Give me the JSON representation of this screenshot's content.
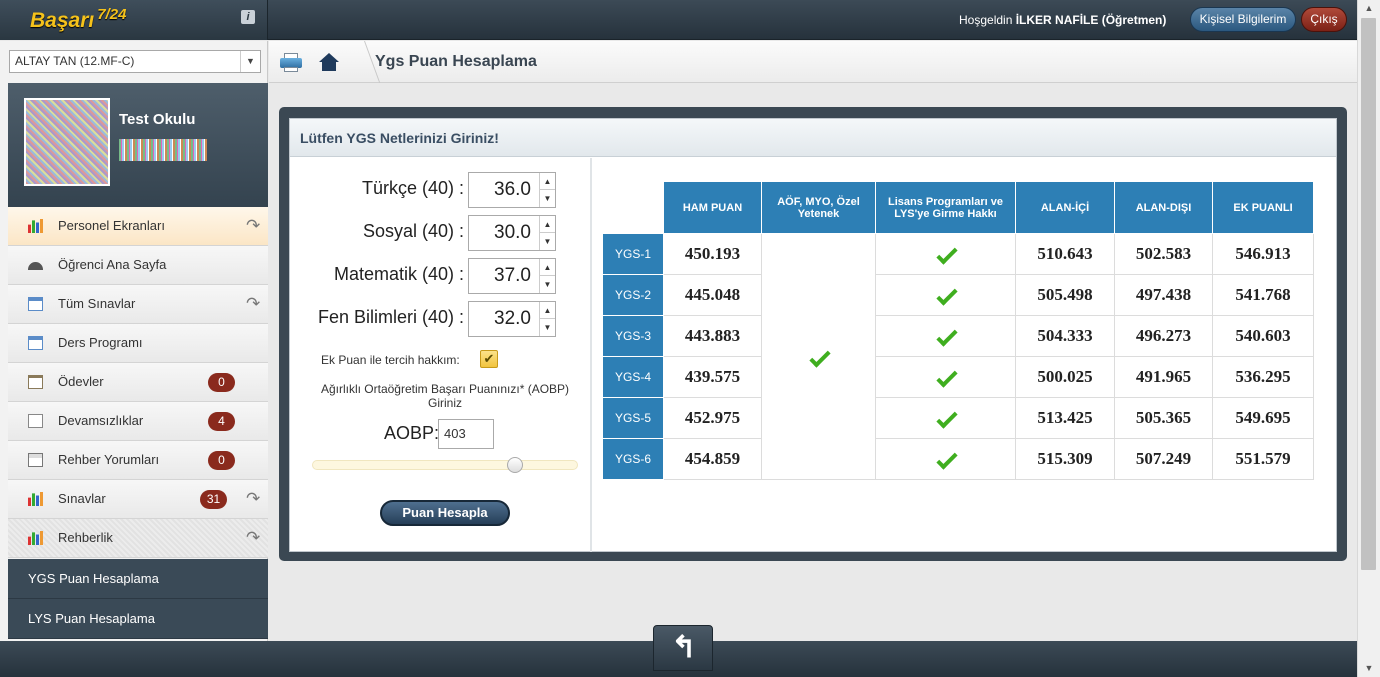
{
  "app": {
    "name": "Başarı",
    "version": "7/24",
    "info": "i"
  },
  "header": {
    "welcome_prefix": "Hoşgeldin",
    "user": "İLKER NAFİLE (Öğretmen)",
    "profile_button": "Kişisel Bilgilerim",
    "exit_button": "Çıkış"
  },
  "sidebar": {
    "student_select": "ALTAY TAN (12.MF-C)",
    "school": "Test Okulu",
    "items": [
      {
        "label": "Personel Ekranları",
        "icon": "bar-chart-icon",
        "badge": null,
        "arrow": true
      },
      {
        "label": "Öğrenci Ana Sayfa",
        "icon": "dashboard-icon",
        "badge": null,
        "arrow": false
      },
      {
        "label": "Tüm Sınavlar",
        "icon": "calendar-icon",
        "badge": null,
        "arrow": true
      },
      {
        "label": "Ders Programı",
        "icon": "calendar-icon",
        "badge": null,
        "arrow": false
      },
      {
        "label": "Ödevler",
        "icon": "clipboard-icon",
        "badge": "0",
        "arrow": false
      },
      {
        "label": "Devamsızlıklar",
        "icon": "warning-icon",
        "badge": "4",
        "arrow": false
      },
      {
        "label": "Rehber Yorumları",
        "icon": "notes-icon",
        "badge": "0",
        "arrow": false
      },
      {
        "label": "Sınavlar",
        "icon": "bar-chart-icon",
        "badge": "31",
        "arrow": true
      },
      {
        "label": "Rehberlik",
        "icon": "bar-chart-icon",
        "badge": null,
        "arrow": true
      }
    ],
    "submenu": [
      "YGS Puan Hesaplama",
      "LYS Puan Hesaplama"
    ]
  },
  "breadcrumb": {
    "title": "Ygs Puan Hesaplama"
  },
  "panel": {
    "title": "Lütfen YGS Netlerinizi Giriniz!"
  },
  "form": {
    "fields": [
      {
        "label": "Türkçe (40) :",
        "value": "36.0"
      },
      {
        "label": "Sosyal (40) :",
        "value": "30.0"
      },
      {
        "label": "Matematik (40) :",
        "value": "37.0"
      },
      {
        "label": "Fen Bilimleri (40) :",
        "value": "32.0"
      }
    ],
    "ek_puan_label": "Ek Puan ile tercih hakkım:",
    "ek_puan_checked": true,
    "aobp_desc": "Ağırlıklı Ortaöğretim Başarı Puanınızı* (AOBP) Giriniz",
    "aobp_label": "AOBP:",
    "aobp_value": "403",
    "calc_button": "Puan Hesapla"
  },
  "results": {
    "headers": [
      "HAM PUAN",
      "AÖF, MYO, Özel Yetenek",
      "Lisans Programları ve LYS'ye Girme Hakkı",
      "ALAN-İÇİ",
      "ALAN-DIŞI",
      "EK PUANLI"
    ],
    "rows": [
      {
        "label": "YGS-1",
        "ham": "450.193",
        "alan_ici": "510.643",
        "alan_disi": "502.583",
        "ek": "546.913"
      },
      {
        "label": "YGS-2",
        "ham": "445.048",
        "alan_ici": "505.498",
        "alan_disi": "497.438",
        "ek": "541.768"
      },
      {
        "label": "YGS-3",
        "ham": "443.883",
        "alan_ici": "504.333",
        "alan_disi": "496.273",
        "ek": "540.603"
      },
      {
        "label": "YGS-4",
        "ham": "439.575",
        "alan_ici": "500.025",
        "alan_disi": "491.965",
        "ek": "536.295"
      },
      {
        "label": "YGS-5",
        "ham": "452.975",
        "alan_ici": "513.425",
        "alan_disi": "505.365",
        "ek": "549.695"
      },
      {
        "label": "YGS-6",
        "ham": "454.859",
        "alan_ici": "515.309",
        "alan_disi": "507.249",
        "ek": "551.579"
      }
    ]
  },
  "colors": {
    "accent": "#2d7fb5",
    "logo": "#f5c21b",
    "badge": "#8a2a1d",
    "check": "#3fae1f"
  }
}
